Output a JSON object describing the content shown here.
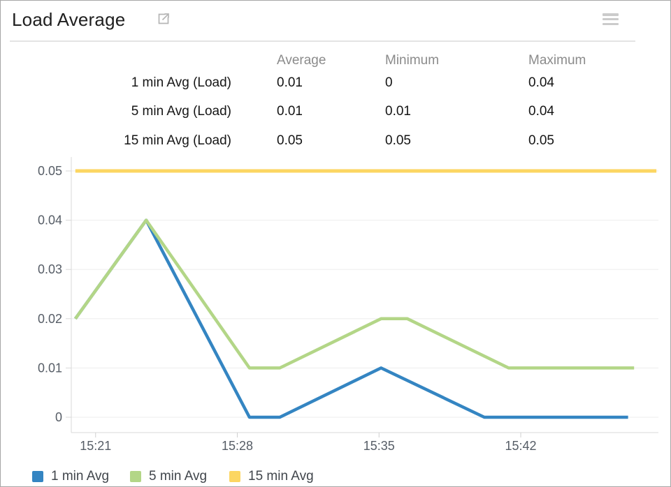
{
  "window": {
    "title": "Load Average"
  },
  "icons": {
    "expand": "open-in-new-window-icon",
    "menu": "hamburger-menu-icon"
  },
  "stats_table": {
    "columns": [
      "Average",
      "Minimum",
      "Maximum"
    ],
    "rows": [
      {
        "label": "1 min Avg (Load)",
        "average": "0.01",
        "minimum": "0",
        "maximum": "0.04"
      },
      {
        "label": "5 min Avg (Load)",
        "average": "0.01",
        "minimum": "0.01",
        "maximum": "0.04"
      },
      {
        "label": "15 min Avg (Load)",
        "average": "0.05",
        "minimum": "0.05",
        "maximum": "0.05"
      }
    ]
  },
  "chart_data": {
    "type": "line",
    "title": "Load Average",
    "x_axis": {
      "unit": "minutes after 15:00",
      "tick_values": [
        21,
        28,
        35,
        42
      ],
      "tick_labels": [
        "15:21",
        "15:28",
        "15:35",
        "15:42"
      ],
      "range": [
        19.8,
        48.8
      ]
    },
    "y_axis": {
      "range": [
        0,
        0.05
      ],
      "ticks": [
        0,
        0.01,
        0.02,
        0.03,
        0.04,
        0.05
      ],
      "grid": true
    },
    "legend_position": "bottom",
    "series": [
      {
        "name": "1 min Avg",
        "color": "#3485c2",
        "points": [
          [
            20,
            0.02
          ],
          [
            23.5,
            0.04
          ],
          [
            28.6,
            0
          ],
          [
            30.1,
            0
          ],
          [
            35.1,
            0.01
          ],
          [
            40.2,
            0
          ],
          [
            47.3,
            0
          ]
        ]
      },
      {
        "name": "5 min Avg",
        "color": "#b3d687",
        "points": [
          [
            20,
            0.02
          ],
          [
            23.5,
            0.04
          ],
          [
            28.6,
            0.01
          ],
          [
            30.1,
            0.01
          ],
          [
            35.1,
            0.02
          ],
          [
            36.4,
            0.02
          ],
          [
            41.4,
            0.01
          ],
          [
            47.6,
            0.01
          ]
        ]
      },
      {
        "name": "15 min Avg",
        "color": "#fcd662",
        "points": [
          [
            20,
            0.05
          ],
          [
            48.7,
            0.05
          ]
        ]
      }
    ]
  }
}
